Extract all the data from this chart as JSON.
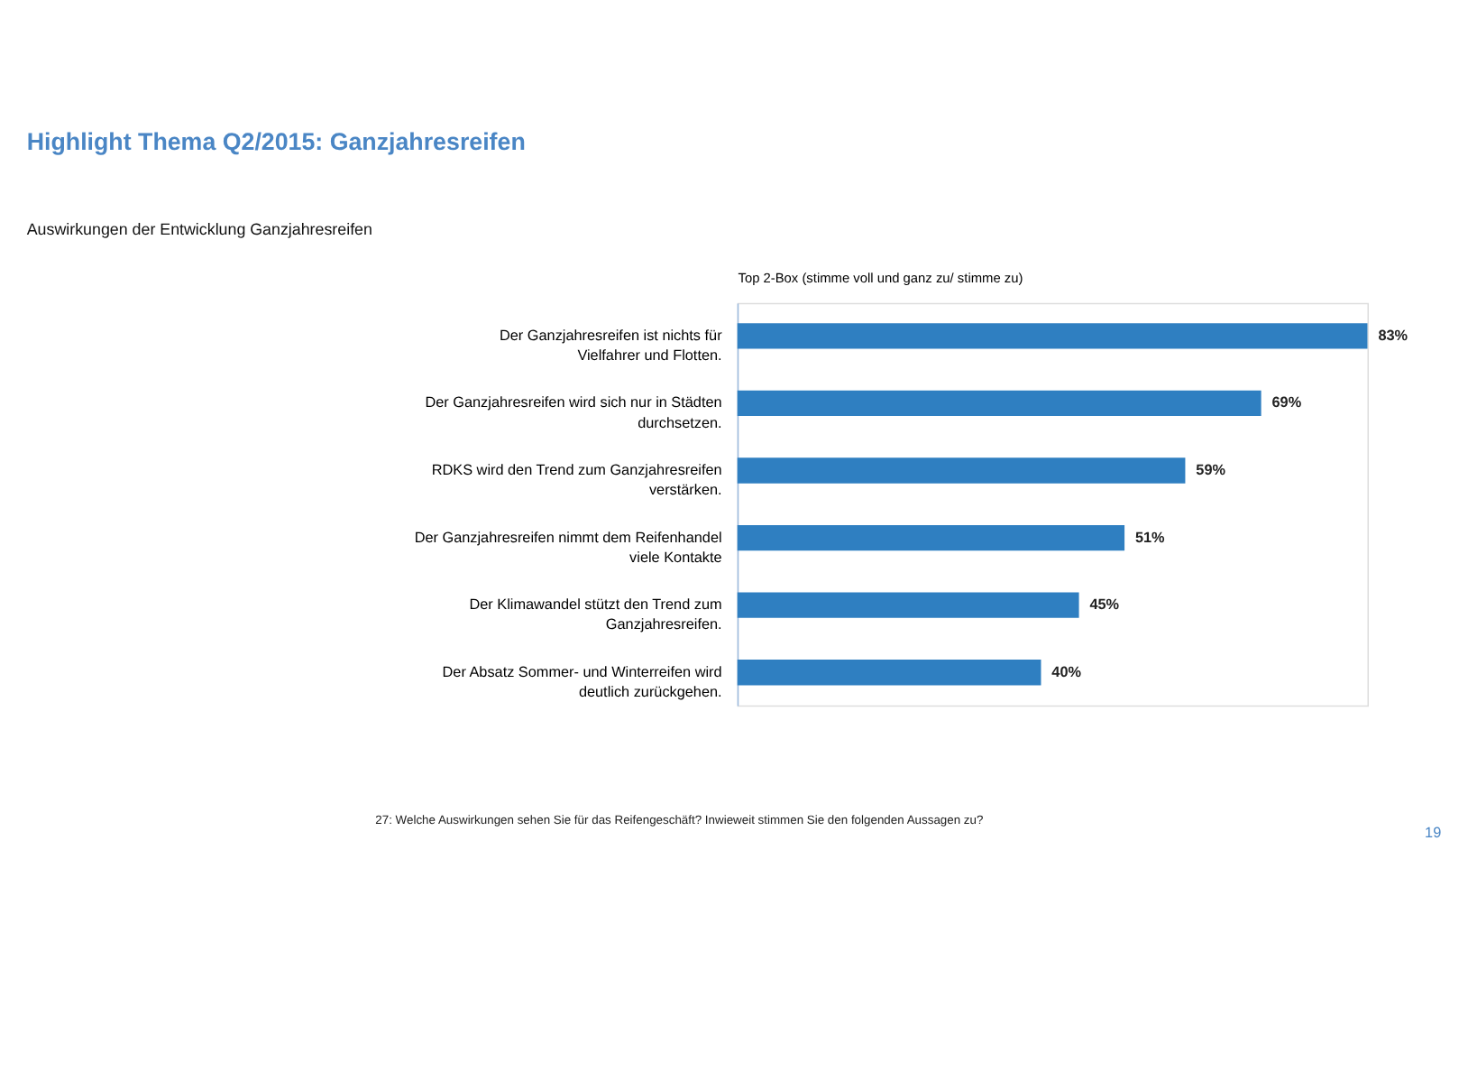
{
  "chart_data": {
    "type": "bar",
    "orientation": "horizontal",
    "title": "Highlight Thema Q2/2015: Ganzjahresreifen",
    "subtitle": "Auswirkungen der Entwicklung Ganzjahresreifen",
    "xlabel": "Top 2-Box (stimme voll und ganz zu/ stimme zu)",
    "categories": [
      "Der Ganzjahresreifen ist nichts für Vielfahrer und Flotten.",
      "Der Ganzjahresreifen wird sich nur in Städten durchsetzen.",
      "RDKS wird den Trend zum Ganzjahresreifen verstärken.",
      "Der Ganzjahresreifen nimmt dem Reifenhandel viele Kontakte",
      "Der Klimawandel stützt den Trend zum Ganzjahresreifen.",
      "Der Absatz Sommer- und Winterreifen wird deutlich zurückgehen."
    ],
    "values": [
      83,
      69,
      59,
      51,
      45,
      40
    ],
    "value_labels": [
      "83%",
      "69%",
      "59%",
      "51%",
      "45%",
      "40%"
    ],
    "color": "#2f7fc1",
    "annotations": [
      "27: Welche Auswirkungen sehen Sie für das Reifengeschäft? Inwieweit stimmen Sie den folgenden Aussagen zu?",
      "19"
    ]
  }
}
